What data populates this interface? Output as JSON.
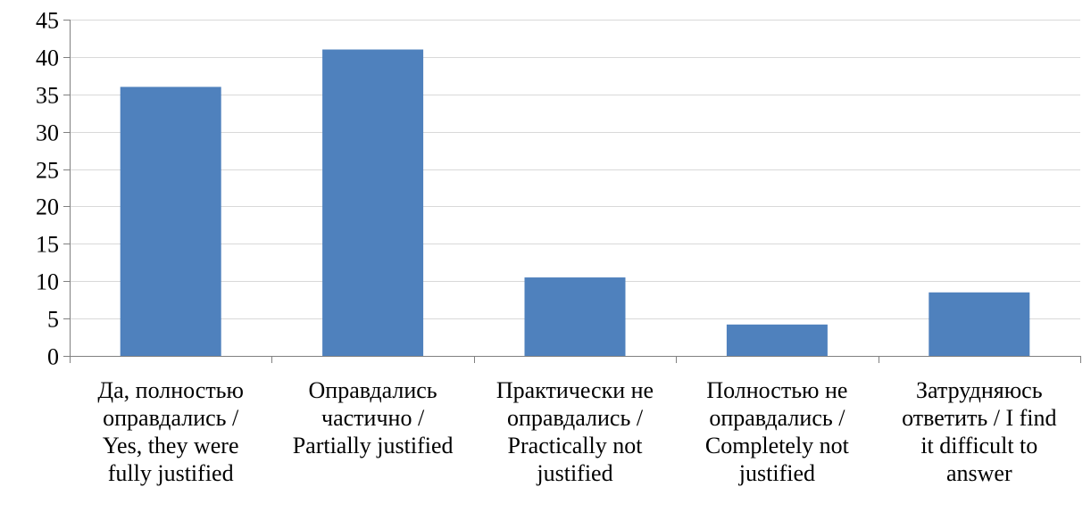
{
  "chart_data": {
    "type": "bar",
    "categories": [
      "Да, полностью\nоправдались /\nYes, they were\nfully justified",
      "Оправдались\nчастично /\nPartially justified",
      "Практически не\nоправдались /\nPractically not\njustified",
      "Полностью не\nоправдались /\nCompletely not\njustified",
      "Затрудняюсь\nответить / I find\nit difficult to\nanswer"
    ],
    "values": [
      36,
      41,
      10.5,
      4.2,
      8.5
    ],
    "title": "",
    "xlabel": "",
    "ylabel": "",
    "ylim": [
      0,
      45
    ],
    "yticks": [
      0,
      5,
      10,
      15,
      20,
      25,
      30,
      35,
      40,
      45
    ],
    "grid": true,
    "legend": "none",
    "colors": {
      "bar": "#4F81BD",
      "grid": "#D9D9D9",
      "axis": "#808080"
    }
  }
}
